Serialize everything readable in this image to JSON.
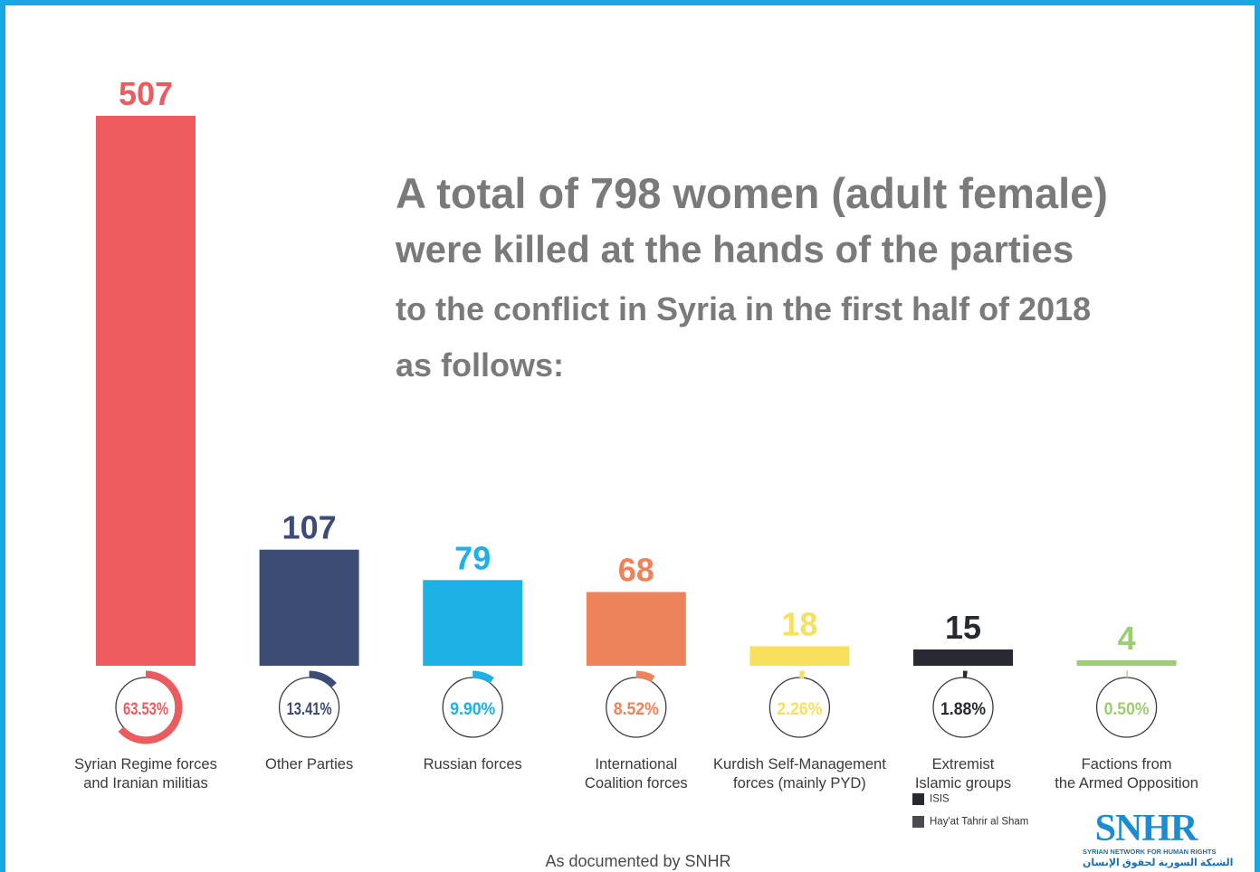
{
  "title": {
    "line1": "A total of 798 women (adult female)",
    "line2": "were killed at the hands of the parties",
    "line3": "to the conflict in Syria in the first half of 2018",
    "line4": "as follows:"
  },
  "chart_data": {
    "type": "bar",
    "title": "A total of 798 women (adult female) were killed at the hands of the parties to the conflict in Syria in the first half of 2018 as follows:",
    "categories": [
      [
        "Syrian Regime forces",
        "and Iranian militias"
      ],
      [
        "Other Parties"
      ],
      [
        "Russian forces"
      ],
      [
        "International",
        "Coalition forces"
      ],
      [
        "Kurdish Self-Management",
        "forces (mainly PYD)"
      ],
      [
        "Extremist",
        "Islamic groups"
      ],
      [
        "Factions from",
        "the Armed Opposition"
      ]
    ],
    "values": [
      507,
      107,
      79,
      68,
      18,
      15,
      4
    ],
    "value_labels": [
      "507",
      "107",
      "79",
      "68",
      "18",
      "15",
      "4"
    ],
    "percentages": [
      63.53,
      13.41,
      9.9,
      8.52,
      2.26,
      1.88,
      0.5
    ],
    "percent_labels": [
      "63.53%",
      "13.41%",
      "9.90%",
      "8.52%",
      "2.26%",
      "1.88%",
      "0.50%"
    ],
    "colors": [
      "#ee5b5e",
      "#3d4c77",
      "#1db1e6",
      "#ee825b",
      "#f8df5e",
      "#272a30",
      "#9ccd72"
    ],
    "ylim": [
      0,
      507
    ],
    "xlabel": "",
    "ylabel": "",
    "grid": false,
    "legend": {
      "placement": "below Extremist Islamic groups",
      "items": [
        {
          "label": "ISIS",
          "color": "#272a30"
        },
        {
          "label": "Hay'at Tahrir al Sham",
          "color": "#4a4b50"
        }
      ]
    }
  },
  "footer": "As documented by SNHR",
  "logo": {
    "name": "SNHR",
    "subtitle": "SYRIAN NETWORK FOR HUMAN RIGHTS",
    "arabic": "الشبكة السورية لحقوق الإنسان"
  },
  "colors": {
    "frame": "#1aa7e1",
    "title": "#7a7a7c",
    "ring_track": "#3a3a3a"
  }
}
